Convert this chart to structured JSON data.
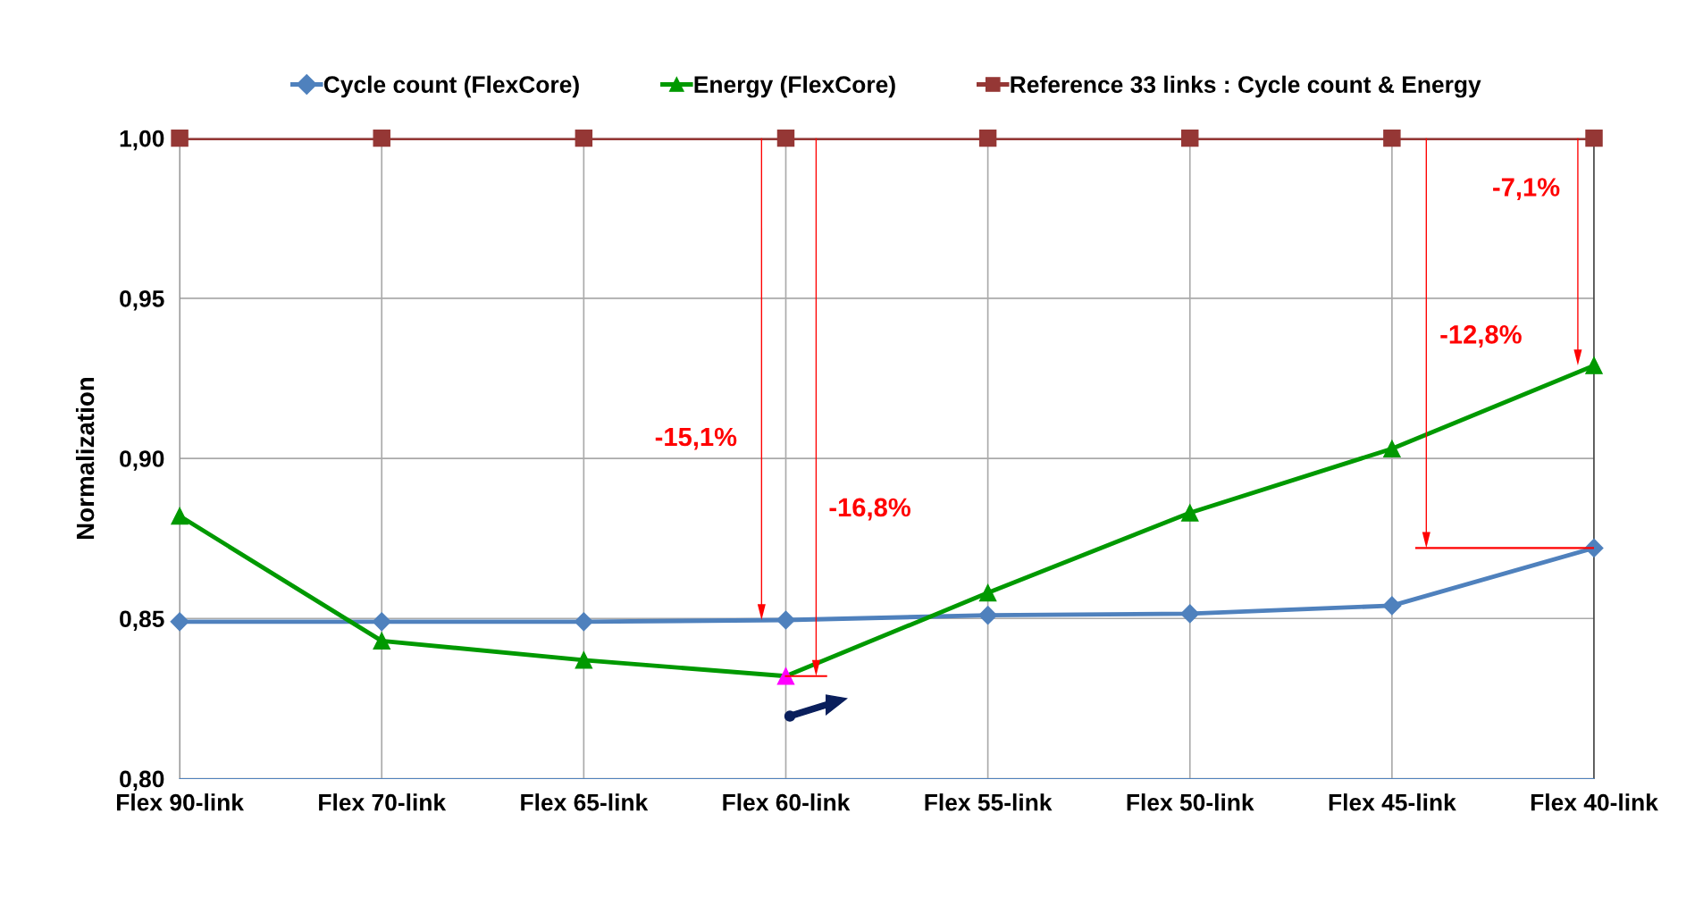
{
  "chart_data": {
    "type": "line",
    "ylabel": "Normalization",
    "categories": [
      "Flex 90-link",
      "Flex 70-link",
      "Flex 65-link",
      "Flex 60-link",
      "Flex 55-link",
      "Flex 50-link",
      "Flex 45-link",
      "Flex 40-link"
    ],
    "series": [
      {
        "name": "Cycle count (FlexCore)",
        "color": "#4f81bd",
        "marker": "diamond",
        "values": [
          0.849,
          0.849,
          0.849,
          0.8495,
          0.851,
          0.8515,
          0.854,
          0.872
        ]
      },
      {
        "name": "Energy (FlexCore)",
        "color": "#009900",
        "marker": "triangle",
        "colors": [
          "#009900",
          "#009900",
          "#009900",
          "#ff00ff",
          "#009900",
          "#009900",
          "#009900",
          "#009900"
        ],
        "values": [
          0.882,
          0.843,
          0.837,
          0.832,
          0.858,
          0.883,
          0.903,
          0.929
        ]
      },
      {
        "name": "Reference 33 links : Cycle count & Energy",
        "color": "#953735",
        "marker": "square",
        "values": [
          1.0,
          1.0,
          1.0,
          1.0,
          1.0,
          1.0,
          1.0,
          1.0
        ]
      }
    ],
    "ylim": [
      0.8,
      1.0
    ],
    "yticks": [
      {
        "value": 0.8,
        "label": "0,80"
      },
      {
        "value": 0.85,
        "label": "0,85"
      },
      {
        "value": 0.9,
        "label": "0,90"
      },
      {
        "value": 0.95,
        "label": "0,95"
      },
      {
        "value": 1.0,
        "label": "1,00"
      }
    ],
    "annotations": [
      "-15,1%",
      "-16,8%",
      "-12,8%",
      "-7,1%"
    ],
    "grid": true,
    "legend": "top"
  }
}
